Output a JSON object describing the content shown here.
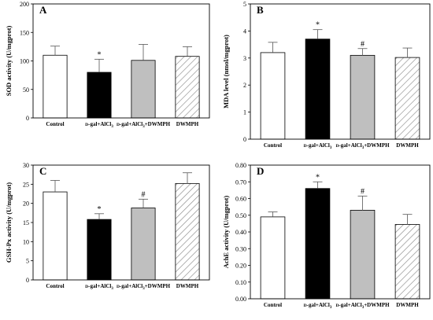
{
  "chart_data": [
    {
      "panel": "A",
      "type": "bar",
      "ylabel": "SOD activity (U/mgprot)",
      "ylim": [
        0,
        200
      ],
      "yticks": [
        0,
        50,
        100,
        150,
        200
      ],
      "tick_format": "int",
      "categories": [
        "Control",
        "D-gal+AlCl3",
        "D-gal+AlCl3+DWMPH",
        "DWMPH"
      ],
      "values": [
        110,
        80,
        101,
        108
      ],
      "errors": [
        16,
        23,
        28,
        17
      ],
      "fills": [
        "white",
        "black",
        "gray",
        "hatch"
      ],
      "significance": [
        "",
        "*",
        "",
        ""
      ]
    },
    {
      "panel": "B",
      "type": "bar",
      "ylabel": "MDA level (nmol/mgprot)",
      "ylim": [
        0,
        5
      ],
      "yticks": [
        0,
        1,
        2,
        3,
        4,
        5
      ],
      "tick_format": "int",
      "categories": [
        "Control",
        "D-gal+AlCl3",
        "D-gal+AlCl3+DWMPH",
        "DWMPH"
      ],
      "values": [
        3.2,
        3.7,
        3.1,
        3.02
      ],
      "errors": [
        0.38,
        0.35,
        0.25,
        0.35
      ],
      "fills": [
        "white",
        "black",
        "gray",
        "hatch"
      ],
      "significance": [
        "",
        "*",
        "#",
        ""
      ]
    },
    {
      "panel": "C",
      "type": "bar",
      "ylabel": "GSH-Px activity (U/mgprot)",
      "ylim": [
        0,
        30
      ],
      "yticks": [
        0,
        5,
        10,
        15,
        20,
        25,
        30
      ],
      "tick_format": "int",
      "categories": [
        "Control",
        "D-gal+AlCl3",
        "D-gal+AlCl3+DWMPH",
        "DWMPH"
      ],
      "values": [
        23,
        15.8,
        18.8,
        25.2
      ],
      "errors": [
        3,
        1.5,
        2.3,
        2.8
      ],
      "fills": [
        "white",
        "black",
        "gray",
        "hatch"
      ],
      "significance": [
        "",
        "*",
        "#",
        ""
      ]
    },
    {
      "panel": "D",
      "type": "bar",
      "ylabel": "AchE activity (U/mgprot)",
      "ylim": [
        0.0,
        0.8
      ],
      "yticks": [
        0.0,
        0.1,
        0.2,
        0.3,
        0.4,
        0.5,
        0.6,
        0.7,
        0.8
      ],
      "tick_format": "2dp",
      "categories": [
        "Control",
        "D-gal+AlCl3",
        "D-gal+AlCl3+DWMPH",
        "DWMPH"
      ],
      "values": [
        0.49,
        0.66,
        0.53,
        0.445
      ],
      "errors": [
        0.03,
        0.04,
        0.085,
        0.06
      ],
      "fills": [
        "white",
        "black",
        "gray",
        "hatch"
      ],
      "significance": [
        "",
        "*",
        "#",
        ""
      ]
    }
  ],
  "colors": {
    "axis": "#000000",
    "bar_gray": "#bfbfbf",
    "hatch": "#8c8c8c",
    "bar_black": "#000000"
  }
}
